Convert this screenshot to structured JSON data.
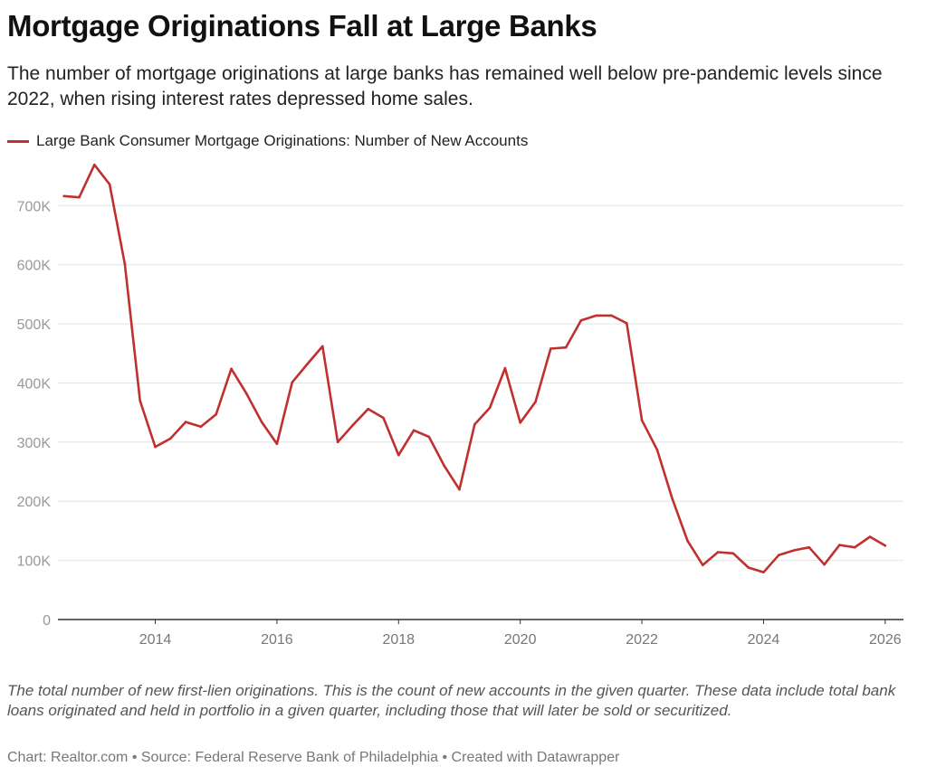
{
  "header": {
    "title": "Mortgage Originations Fall at Large Banks",
    "subtitle": "The number of mortgage originations at large banks has remained well below pre-pandemic levels since 2022, when rising interest rates depressed home sales."
  },
  "footer": {
    "notes": "The total number of new first-lien originations. This is the count of new accounts in the given quarter. These data include total bank loans originated and held in portfolio in a given quarter, including those that will later be sold or securitized.",
    "byline": "Chart: Realtor.com • Source: Federal Reserve Bank of Philadelphia • Created with Datawrapper"
  },
  "colors": {
    "line": "#c0302e",
    "grid": "#e4e4e4",
    "baseline": "#333333"
  },
  "chart_data": {
    "type": "line",
    "title": "Mortgage Originations Fall at Large Banks",
    "xlabel": "",
    "ylabel": "",
    "legend_position": "top-left",
    "grid": true,
    "xlim": [
      2012.4,
      2026.3
    ],
    "ylim": [
      0,
      780000
    ],
    "y_ticks": [
      0,
      100000,
      200000,
      300000,
      400000,
      500000,
      600000,
      700000
    ],
    "y_tick_labels": [
      "0",
      "100K",
      "200K",
      "300K",
      "400K",
      "500K",
      "600K",
      "700K"
    ],
    "x_ticks": [
      2014,
      2016,
      2018,
      2020,
      2022,
      2024,
      2026
    ],
    "x_tick_labels": [
      "2014",
      "2016",
      "2018",
      "2020",
      "2022",
      "2024",
      "2026"
    ],
    "series": [
      {
        "name": "Large Bank Consumer Mortgage Originations: Number of New Accounts",
        "x": [
          2012.5,
          2012.75,
          2013.0,
          2013.25,
          2013.5,
          2013.75,
          2014.0,
          2014.25,
          2014.5,
          2014.75,
          2015.0,
          2015.25,
          2015.5,
          2015.75,
          2016.0,
          2016.25,
          2016.5,
          2016.75,
          2017.0,
          2017.25,
          2017.5,
          2017.75,
          2018.0,
          2018.25,
          2018.5,
          2018.75,
          2019.0,
          2019.25,
          2019.5,
          2019.75,
          2020.0,
          2020.25,
          2020.5,
          2020.75,
          2021.0,
          2021.25,
          2021.5,
          2021.75,
          2022.0,
          2022.25,
          2022.5,
          2022.75,
          2023.0,
          2023.25,
          2023.5,
          2023.75,
          2024.0,
          2024.25,
          2024.5,
          2024.75,
          2025.0,
          2025.25,
          2025.5,
          2025.75,
          2026.0
        ],
        "values": [
          716000,
          714000,
          769000,
          736000,
          601000,
          370000,
          292000,
          306000,
          334000,
          326000,
          347000,
          424000,
          382000,
          334000,
          297000,
          401000,
          432000,
          462000,
          300000,
          329000,
          356000,
          341000,
          278000,
          320000,
          309000,
          260000,
          220000,
          330000,
          358000,
          425000,
          333000,
          368000,
          458000,
          460000,
          506000,
          514000,
          514000,
          501000,
          337000,
          287000,
          204000,
          133000,
          92000,
          114000,
          112000,
          88000,
          80000,
          109000,
          117000,
          122000,
          93000,
          126000,
          122000,
          140000,
          125000
        ]
      }
    ]
  }
}
